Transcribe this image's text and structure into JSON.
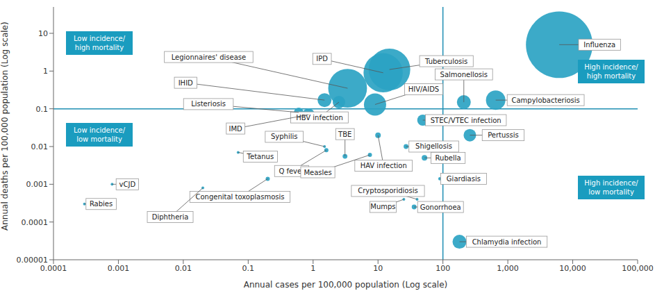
{
  "chart_data": {
    "type": "scatter",
    "log": true,
    "grid": false,
    "color": "#2ba3c3",
    "x_label": "Annual cases per 100,000 population (Log scale)",
    "y_label": "Annual deaths per 100,000 population (Log scale)",
    "xlim": [
      0.0001,
      100000
    ],
    "xticks": [
      0.0001,
      0.001,
      0.01,
      0.1,
      1,
      10,
      100,
      {
        "value": 1000,
        "label": "1,000"
      },
      {
        "value": 10000,
        "label": "10,000"
      },
      {
        "value": 100000,
        "label": "100,000"
      }
    ],
    "ylim": [
      1e-05,
      50
    ],
    "yticks": [
      1e-05,
      0.0001,
      0.001,
      0.01,
      0.1,
      1,
      10
    ],
    "thresholds": {
      "x": 100,
      "y": 0.1,
      "color": "#1f8fb3"
    },
    "quadrants": [
      {
        "lines": [
          "Low incidence/",
          "high mortality"
        ]
      },
      {
        "lines": [
          "Low incidence/",
          "low mortality"
        ]
      },
      {
        "lines": [
          "High incidence/",
          "high mortality"
        ]
      },
      {
        "lines": [
          "High incidence/",
          "low mortality"
        ]
      }
    ],
    "labels": [
      "Influenza",
      "Tuberculosis",
      "IPD",
      "Legionnaires' disease",
      "HIV/AIDS",
      "IHID",
      "HBV infection",
      "Listeriosis",
      "IMD",
      "Salmonellosis",
      "Campylobacteriosis",
      "STEC/VTEC infection",
      "Pertussis",
      "HAV infection",
      "TBE",
      "Syphilis",
      "Q fever",
      "Measles",
      "Shigellosis",
      "Rubella",
      "Giardiasis",
      "Cryptosporidiosis",
      "Mumps",
      "Gonorrhoea",
      "Chlamydia infection",
      "Congenital toxoplasmosis",
      "Tetanus",
      "Diphtheria",
      "vCJD",
      "Rabies"
    ],
    "x": [
      6200,
      15,
      12,
      3.4,
      9,
      1.5,
      2.5,
      0.6,
      0.85,
      210,
      650,
      49,
      260,
      10,
      3.1,
      1.5,
      1.6,
      7.5,
      27,
      52,
      90,
      40,
      25,
      36,
      180,
      0.2,
      0.07,
      0.02,
      0.0008,
      0.0003
    ],
    "y": [
      5,
      1.1,
      0.9,
      0.35,
      0.13,
      0.17,
      0.15,
      0.08,
      0.07,
      0.15,
      0.17,
      0.05,
      0.02,
      0.02,
      0.0055,
      0.01,
      0.008,
      0.006,
      0.01,
      0.005,
      0.0014,
      0.0004,
      0.0004,
      0.00025,
      3e-05,
      0.0014,
      0.007,
      0.0008,
      0.001,
      0.0003
    ],
    "size": [
      2300,
      900,
      800,
      780,
      256,
      100,
      81,
      49,
      81,
      100,
      196,
      64,
      81,
      16,
      12,
      4,
      9,
      9,
      12,
      16,
      6,
      4,
      4,
      12,
      100,
      9,
      4,
      4,
      4,
      4
    ]
  }
}
